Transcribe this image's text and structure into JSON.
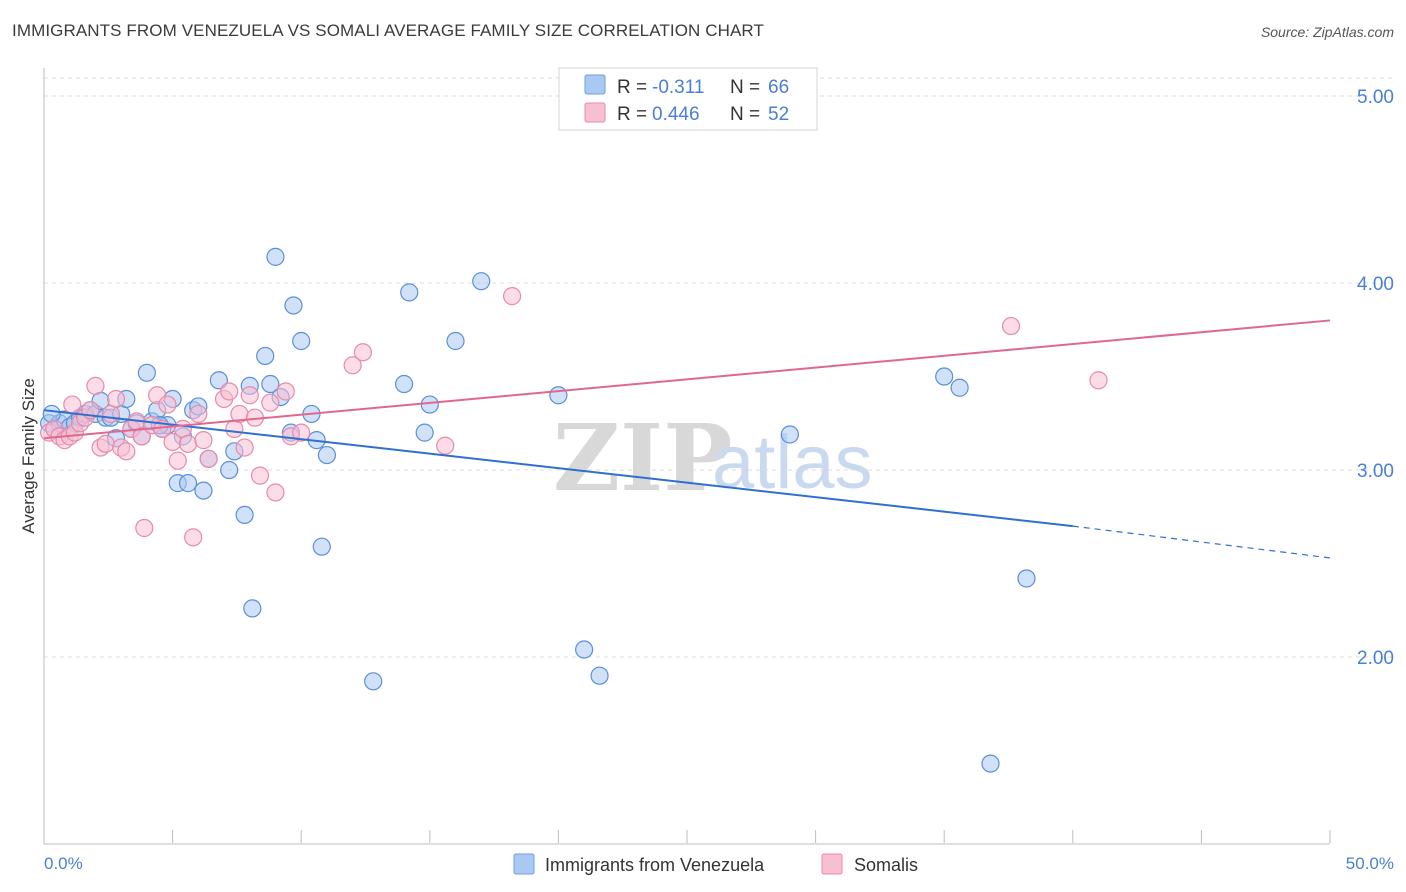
{
  "title": "IMMIGRANTS FROM VENEZUELA VS SOMALI AVERAGE FAMILY SIZE CORRELATION CHART",
  "source": "Source: ZipAtlas.com",
  "watermark": {
    "part1": "ZIP",
    "part2": "atlas"
  },
  "legend": {
    "rows": [
      {
        "r_label": "R =",
        "r_value": "-0.311",
        "n_label": "N =",
        "n_value": "66",
        "color": "#a9c8f2",
        "stroke": "#6e9fe0"
      },
      {
        "r_label": "R =",
        "r_value": "0.446",
        "n_label": "N =",
        "n_value": "52",
        "color": "#f7bfd3",
        "stroke": "#e88aaa"
      }
    ]
  },
  "bottom_legend": [
    "Immigrants from Venezuela",
    "Somalis"
  ],
  "chart_data": {
    "type": "scatter",
    "xlabel": "",
    "ylabel": "Average Family Size",
    "x_tick_labels": [
      "0.0%",
      "50.0%"
    ],
    "y_tick_labels": [
      "2.00",
      "3.00",
      "4.00",
      "5.00"
    ],
    "xlim": [
      0,
      50
    ],
    "ylim": [
      1.0,
      5.15
    ],
    "grid": true,
    "series": [
      {
        "name": "Immigrants from Venezuela",
        "color": "#a9c8f2",
        "stroke": "#5b8fd8",
        "line_color": "#2f6fd0",
        "trend": {
          "x0": 0,
          "y0": 3.32,
          "x1": 40,
          "y1": 2.7,
          "dash_to_x": 50,
          "dash_to_y": 2.53
        },
        "points": [
          [
            0.2,
            3.25
          ],
          [
            0.4,
            3.22
          ],
          [
            0.6,
            3.25
          ],
          [
            0.8,
            3.27
          ],
          [
            1.0,
            3.23
          ],
          [
            1.2,
            3.25
          ],
          [
            1.4,
            3.28
          ],
          [
            1.6,
            3.3
          ],
          [
            1.8,
            3.32
          ],
          [
            2.0,
            3.3
          ],
          [
            2.2,
            3.37
          ],
          [
            2.4,
            3.28
          ],
          [
            2.6,
            3.28
          ],
          [
            2.8,
            3.17
          ],
          [
            3.0,
            3.3
          ],
          [
            3.2,
            3.38
          ],
          [
            3.4,
            3.22
          ],
          [
            3.6,
            3.25
          ],
          [
            3.8,
            3.18
          ],
          [
            4.0,
            3.52
          ],
          [
            4.2,
            3.26
          ],
          [
            4.4,
            3.32
          ],
          [
            4.6,
            3.22
          ],
          [
            4.8,
            3.24
          ],
          [
            5.0,
            3.38
          ],
          [
            5.2,
            2.93
          ],
          [
            5.4,
            3.18
          ],
          [
            5.6,
            2.93
          ],
          [
            5.8,
            3.32
          ],
          [
            6.0,
            3.34
          ],
          [
            6.2,
            2.89
          ],
          [
            6.4,
            3.06
          ],
          [
            6.8,
            3.48
          ],
          [
            7.2,
            3.0
          ],
          [
            7.4,
            3.1
          ],
          [
            7.8,
            2.76
          ],
          [
            8.0,
            3.45
          ],
          [
            8.1,
            2.26
          ],
          [
            8.6,
            3.61
          ],
          [
            8.8,
            3.46
          ],
          [
            9.0,
            4.14
          ],
          [
            9.2,
            3.39
          ],
          [
            9.6,
            3.2
          ],
          [
            9.7,
            3.88
          ],
          [
            10.0,
            3.69
          ],
          [
            10.4,
            3.3
          ],
          [
            10.6,
            3.16
          ],
          [
            10.8,
            2.59
          ],
          [
            11.0,
            3.08
          ],
          [
            12.8,
            1.87
          ],
          [
            14.0,
            3.46
          ],
          [
            14.2,
            3.95
          ],
          [
            14.8,
            3.2
          ],
          [
            15.0,
            3.35
          ],
          [
            16.0,
            3.69
          ],
          [
            17.0,
            4.01
          ],
          [
            20.0,
            3.4
          ],
          [
            21.0,
            2.04
          ],
          [
            21.6,
            1.9
          ],
          [
            29.0,
            3.19
          ],
          [
            35.0,
            3.5
          ],
          [
            35.6,
            3.44
          ],
          [
            38.2,
            2.42
          ],
          [
            36.8,
            1.43
          ],
          [
            0.3,
            3.3
          ],
          [
            4.5,
            3.24
          ]
        ]
      },
      {
        "name": "Somalis",
        "color": "#f7bfd3",
        "stroke": "#e88aaa",
        "line_color": "#e0688f",
        "trend": {
          "x0": 0,
          "y0": 3.17,
          "x1": 50,
          "y1": 3.8
        },
        "points": [
          [
            0.2,
            3.2
          ],
          [
            0.4,
            3.22
          ],
          [
            0.6,
            3.18
          ],
          [
            0.8,
            3.16
          ],
          [
            1.0,
            3.18
          ],
          [
            1.2,
            3.2
          ],
          [
            1.4,
            3.25
          ],
          [
            1.6,
            3.28
          ],
          [
            1.8,
            3.32
          ],
          [
            2.0,
            3.45
          ],
          [
            2.2,
            3.12
          ],
          [
            2.4,
            3.14
          ],
          [
            2.6,
            3.3
          ],
          [
            2.8,
            3.38
          ],
          [
            3.0,
            3.12
          ],
          [
            3.2,
            3.1
          ],
          [
            3.4,
            3.22
          ],
          [
            3.6,
            3.26
          ],
          [
            3.8,
            3.18
          ],
          [
            3.9,
            2.69
          ],
          [
            4.2,
            3.24
          ],
          [
            4.4,
            3.4
          ],
          [
            4.6,
            3.22
          ],
          [
            4.8,
            3.35
          ],
          [
            5.0,
            3.15
          ],
          [
            5.2,
            3.05
          ],
          [
            5.4,
            3.22
          ],
          [
            5.6,
            3.14
          ],
          [
            5.8,
            2.64
          ],
          [
            6.0,
            3.3
          ],
          [
            6.2,
            3.16
          ],
          [
            6.4,
            3.06
          ],
          [
            7.0,
            3.38
          ],
          [
            7.2,
            3.42
          ],
          [
            7.4,
            3.22
          ],
          [
            7.6,
            3.3
          ],
          [
            7.8,
            3.12
          ],
          [
            8.0,
            3.4
          ],
          [
            8.2,
            3.28
          ],
          [
            8.4,
            2.97
          ],
          [
            8.8,
            3.36
          ],
          [
            9.0,
            2.88
          ],
          [
            9.4,
            3.42
          ],
          [
            9.6,
            3.18
          ],
          [
            10.0,
            3.2
          ],
          [
            12.0,
            3.56
          ],
          [
            12.4,
            3.63
          ],
          [
            15.6,
            3.13
          ],
          [
            18.2,
            3.93
          ],
          [
            37.6,
            3.77
          ],
          [
            41.0,
            3.48
          ],
          [
            1.1,
            3.35
          ]
        ]
      }
    ]
  }
}
